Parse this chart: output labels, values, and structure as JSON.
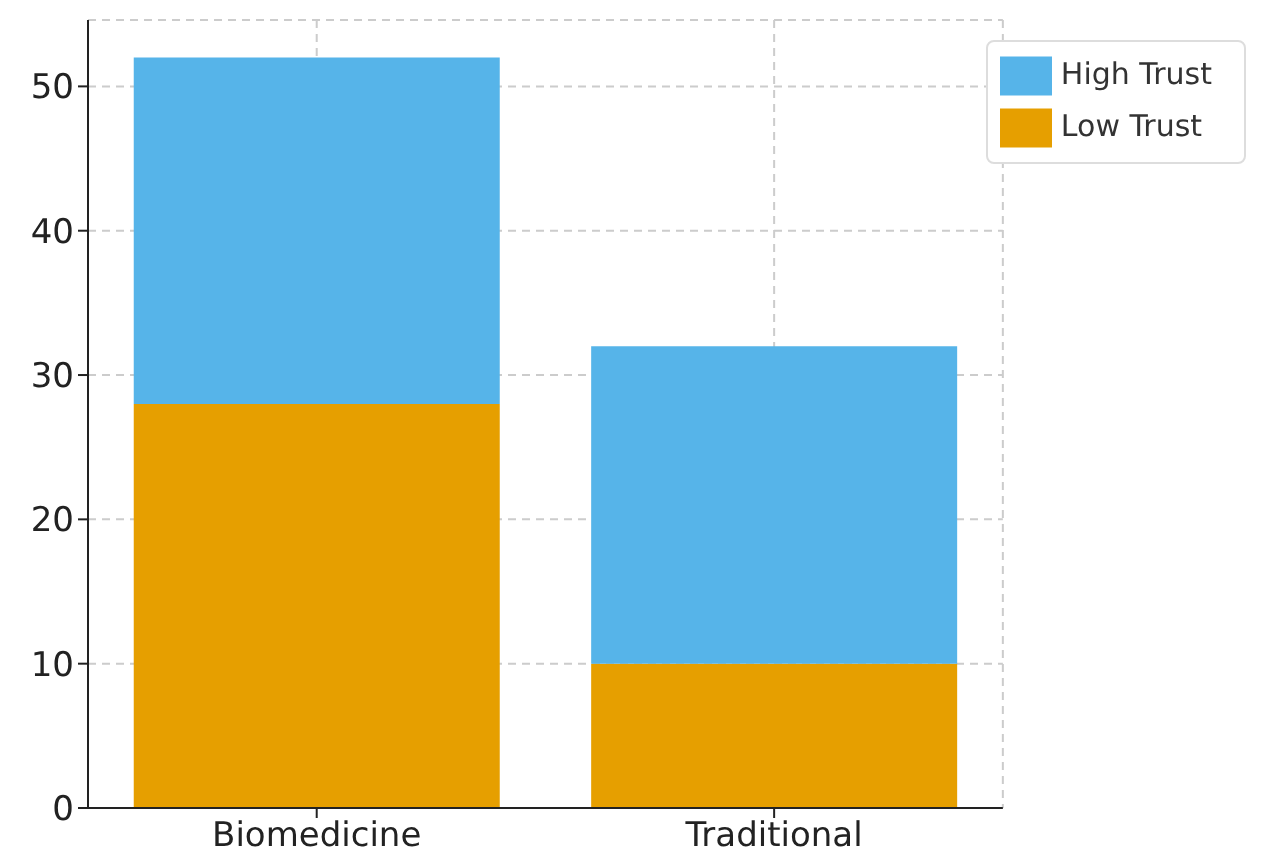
{
  "chart_data": {
    "type": "bar",
    "stacked": true,
    "categories": [
      "Biomedicine",
      "Traditional"
    ],
    "series": [
      {
        "name": "Low Trust",
        "color": "#e69f00",
        "values": [
          28,
          10
        ]
      },
      {
        "name": "High Trust",
        "color": "#56b4e9",
        "values": [
          24,
          22
        ]
      }
    ],
    "ylim": [
      0,
      54.6
    ],
    "yticks": [
      0,
      10,
      20,
      30,
      40,
      50
    ],
    "grid": true,
    "legend": "top right"
  }
}
